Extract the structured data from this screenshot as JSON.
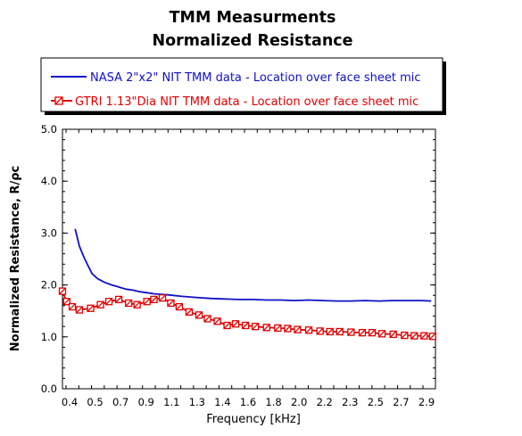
{
  "chart_data": {
    "type": "line",
    "title_line1": "TMM Measurments",
    "title_line2": "Normalized Resistance",
    "xlabel": "Frequency [kHz]",
    "ylabel": "Normalized Resistance, R/ρc",
    "xlim": [
      0.35,
      3.0
    ],
    "ylim": [
      0.0,
      5.0
    ],
    "x_tick_labels": [
      "0.4",
      "0.5",
      "0.7",
      "0.9",
      "1.1",
      "1.3",
      "1.4",
      "1.6",
      "1.8",
      "2.0",
      "2.2",
      "2.3",
      "2.5",
      "2.7",
      "2.9"
    ],
    "y_tick_labels": [
      "0.0",
      "1.0",
      "2.0",
      "3.0",
      "4.0",
      "5.0"
    ],
    "y_tick_values": [
      0,
      1,
      2,
      3,
      4,
      5
    ],
    "grid": false,
    "legend_position": "top",
    "series": [
      {
        "name": "NASA 2\"x2\" NIT TMM data - Location over face sheet mic",
        "color": "#1010c8",
        "marker": "none",
        "x": [
          0.44,
          0.47,
          0.5,
          0.53,
          0.56,
          0.6,
          0.65,
          0.7,
          0.75,
          0.8,
          0.85,
          0.9,
          0.95,
          1.0,
          1.05,
          1.1,
          1.2,
          1.3,
          1.4,
          1.5,
          1.6,
          1.7,
          1.8,
          1.9,
          2.0,
          2.1,
          2.2,
          2.3,
          2.4,
          2.5,
          2.6,
          2.7,
          2.8,
          2.9,
          2.97
        ],
        "y": [
          3.08,
          2.75,
          2.55,
          2.38,
          2.22,
          2.12,
          2.05,
          2.0,
          1.96,
          1.92,
          1.9,
          1.87,
          1.85,
          1.83,
          1.82,
          1.81,
          1.78,
          1.76,
          1.74,
          1.73,
          1.72,
          1.72,
          1.71,
          1.71,
          1.7,
          1.71,
          1.7,
          1.69,
          1.69,
          1.7,
          1.69,
          1.7,
          1.7,
          1.7,
          1.69
        ]
      },
      {
        "name": "GTRI 1.13\"Dia NIT TMM data - Location over face sheet mic",
        "color": "#e00000",
        "marker": "square",
        "x": [
          0.35,
          0.38,
          0.42,
          0.47,
          0.55,
          0.62,
          0.68,
          0.75,
          0.82,
          0.88,
          0.95,
          1.0,
          1.06,
          1.12,
          1.18,
          1.25,
          1.32,
          1.38,
          1.45,
          1.52,
          1.58,
          1.65,
          1.72,
          1.8,
          1.88,
          1.95,
          2.02,
          2.1,
          2.18,
          2.25,
          2.32,
          2.4,
          2.48,
          2.55,
          2.62,
          2.7,
          2.78,
          2.85,
          2.92,
          2.98
        ],
        "y": [
          1.88,
          1.68,
          1.58,
          1.52,
          1.55,
          1.62,
          1.68,
          1.72,
          1.65,
          1.62,
          1.68,
          1.72,
          1.75,
          1.65,
          1.58,
          1.48,
          1.42,
          1.35,
          1.3,
          1.22,
          1.25,
          1.22,
          1.2,
          1.18,
          1.17,
          1.16,
          1.14,
          1.13,
          1.11,
          1.1,
          1.1,
          1.09,
          1.08,
          1.08,
          1.06,
          1.05,
          1.03,
          1.02,
          1.02,
          1.01
        ]
      }
    ]
  }
}
